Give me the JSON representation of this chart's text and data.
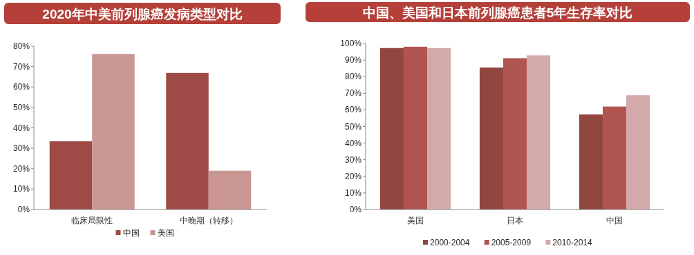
{
  "chart_data": [
    {
      "type": "bar",
      "title": "2020年中美前列腺癌发病类型对比",
      "categories": [
        "临床局限性",
        "中晚期（转移）"
      ],
      "series": [
        {
          "name": "中国",
          "color": "#9e4a46",
          "values": [
            33.4,
            66.9
          ]
        },
        {
          "name": "美国",
          "color": "#c99693",
          "values": [
            76.2,
            19.0
          ]
        }
      ],
      "ylim": [
        0,
        80
      ],
      "yticks": [
        {
          "value": 0,
          "label": "0%"
        },
        {
          "value": 10,
          "label": "10%"
        },
        {
          "value": 20,
          "label": "20%"
        },
        {
          "value": 30,
          "label": "30%"
        },
        {
          "value": 40,
          "label": "40%"
        },
        {
          "value": 50,
          "label": "50%"
        },
        {
          "value": 60,
          "label": "60%"
        },
        {
          "value": 70,
          "label": "70%"
        },
        {
          "value": 80,
          "label": "80%"
        }
      ],
      "grid": false,
      "legend": "bottom"
    },
    {
      "type": "bar",
      "title": "中国、美国和日本前列腺癌患者5年生存率对比",
      "categories": [
        "美国",
        "日本",
        "中国"
      ],
      "series": [
        {
          "name": "2000-2004",
          "color": "#91463f",
          "values": [
            97.2,
            85.5,
            57.2
          ]
        },
        {
          "name": "2005-2009",
          "color": "#b05550",
          "values": [
            98.0,
            91.1,
            62.0
          ]
        },
        {
          "name": "2010-2014",
          "color": "#d3aaa9",
          "values": [
            97.2,
            92.8,
            68.8
          ]
        }
      ],
      "ylim": [
        0,
        100
      ],
      "yticks": [
        {
          "value": 0,
          "label": "0%"
        },
        {
          "value": 10,
          "label": "10%"
        },
        {
          "value": 20,
          "label": "20%"
        },
        {
          "value": 30,
          "label": "30%"
        },
        {
          "value": 40,
          "label": "40%"
        },
        {
          "value": 50,
          "label": "50%"
        },
        {
          "value": 60,
          "label": "60%"
        },
        {
          "value": 70,
          "label": "70%"
        },
        {
          "value": 80,
          "label": "80%"
        },
        {
          "value": 90,
          "label": "90%"
        },
        {
          "value": 100,
          "label": "100%"
        }
      ],
      "grid": false,
      "legend": "bottom"
    }
  ]
}
